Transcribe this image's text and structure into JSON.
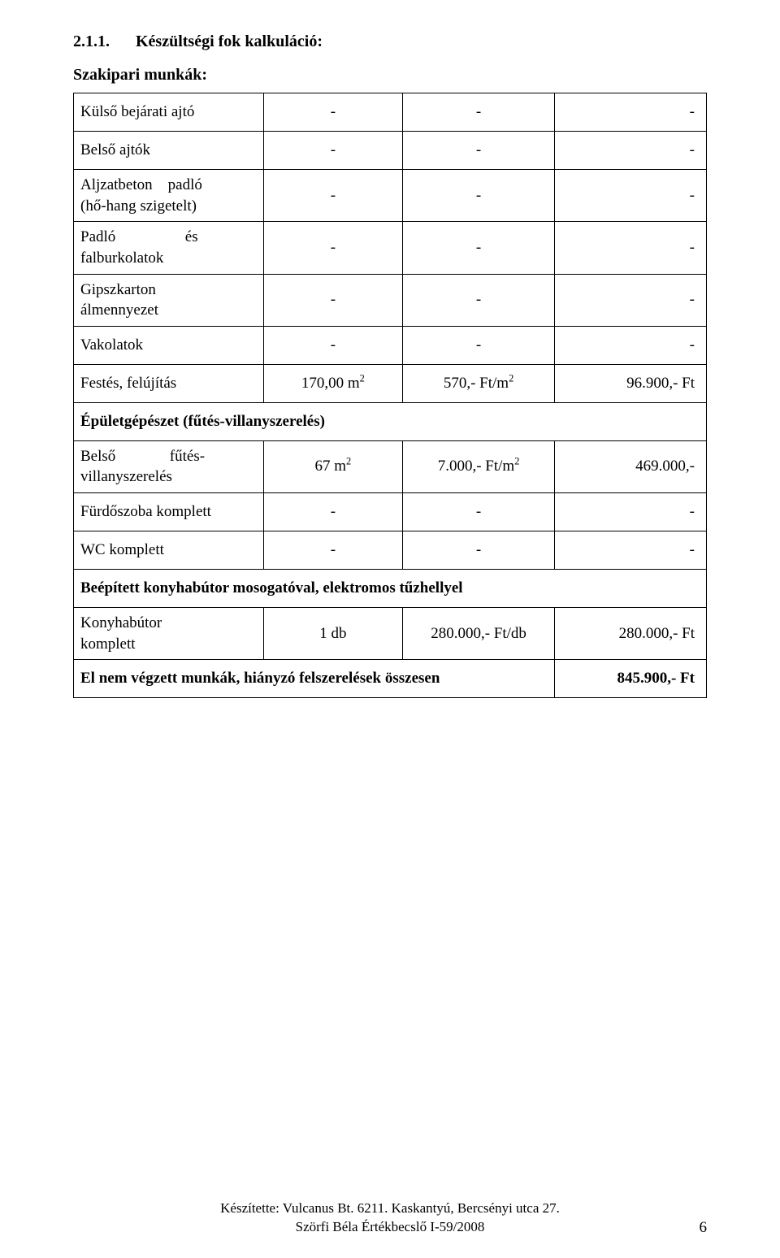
{
  "heading": {
    "number": "2.1.1.",
    "title": "Készültségi fok kalkuláció:"
  },
  "sections": [
    {
      "title": "Szakipari munkák:",
      "rows": [
        {
          "label": "Külső bejárati ajtó",
          "c1": "-",
          "c2": "-",
          "c3": "-",
          "twoLine": false
        },
        {
          "label": "Belső ajtók",
          "c1": "-",
          "c2": "-",
          "c3": "-",
          "twoLine": false
        },
        {
          "label": "Aljzatbeton padló (hő-hang szigetelt)",
          "c1": "-",
          "c2": "-",
          "c3": "-",
          "twoLine": true,
          "labelHtml": "Aljzatbeton&nbsp;&nbsp;&nbsp;&nbsp;padló<br>(hő-hang szigetelt)"
        },
        {
          "label": "Padló és falburkolatok",
          "c1": "-",
          "c2": "-",
          "c3": "-",
          "twoLine": true,
          "labelHtml": "Padló&nbsp;&nbsp;&nbsp;&nbsp;&nbsp;&nbsp;&nbsp;&nbsp;&nbsp;&nbsp;&nbsp;&nbsp;&nbsp;&nbsp;&nbsp;&nbsp;&nbsp;&nbsp;és<br>falburkolatok"
        },
        {
          "label": "Gipszkarton álmennyezet",
          "c1": "-",
          "c2": "-",
          "c3": "-",
          "twoLine": true,
          "labelHtml": "Gipszkarton<br>álmennyezet"
        },
        {
          "label": "Vakolatok",
          "c1": "-",
          "c2": "-",
          "c3": "-",
          "twoLine": false
        },
        {
          "label": "Festés, felújítás",
          "c1Html": "170,00 m<span class=\"sup\">2</span>",
          "c2Html": "570,- Ft/m<span class=\"sup\">2</span>",
          "c3": "96.900,- Ft",
          "twoLine": false
        }
      ]
    },
    {
      "title": "Épületgépészet (fűtés-villanyszerelés)",
      "titleBold": true,
      "fullRow": true,
      "rows": [
        {
          "label": "Belső fűtés-villanyszerelés",
          "labelHtml": "Belső&nbsp;&nbsp;&nbsp;&nbsp;&nbsp;&nbsp;&nbsp;&nbsp;&nbsp;&nbsp;&nbsp;&nbsp;&nbsp;&nbsp;fűtés-<br>villanyszerelés",
          "c1Html": "67 m<span class=\"sup\">2</span>",
          "c2Html": "7.000,- Ft/m<span class=\"sup\">2</span>",
          "c3": "469.000,-",
          "twoLine": true
        },
        {
          "label": "Fürdőszoba komplett",
          "c1": "-",
          "c2": "-",
          "c3": "-",
          "twoLine": false
        },
        {
          "label": "WC komplett",
          "c1": "-",
          "c2": "-",
          "c3": "-",
          "twoLine": false
        }
      ]
    },
    {
      "title": "Beépített konyhabútor mosogatóval, elektromos tűzhellyel",
      "titleBold": true,
      "fullRow": true,
      "rows": [
        {
          "label": "Konyhabútor komplett",
          "labelHtml": "Konyhabútor<br>komplett",
          "c1": "1 db",
          "c2": "280.000,- Ft/db",
          "c3": "280.000,- Ft",
          "twoLine": true
        }
      ]
    }
  ],
  "totalRow": {
    "label": "El nem végzett munkák, hiányzó felszerelések összesen",
    "value": "845.900,- Ft"
  },
  "footer": {
    "line1": "Készítette: Vulcanus Bt. 6211. Kaskantyú, Bercsényi utca 27.",
    "line2": "Szörfi Béla Értékbecslő I-59/2008"
  },
  "pageNumber": "6",
  "columnWidths": [
    "30%",
    "22%",
    "24%",
    "24%"
  ]
}
